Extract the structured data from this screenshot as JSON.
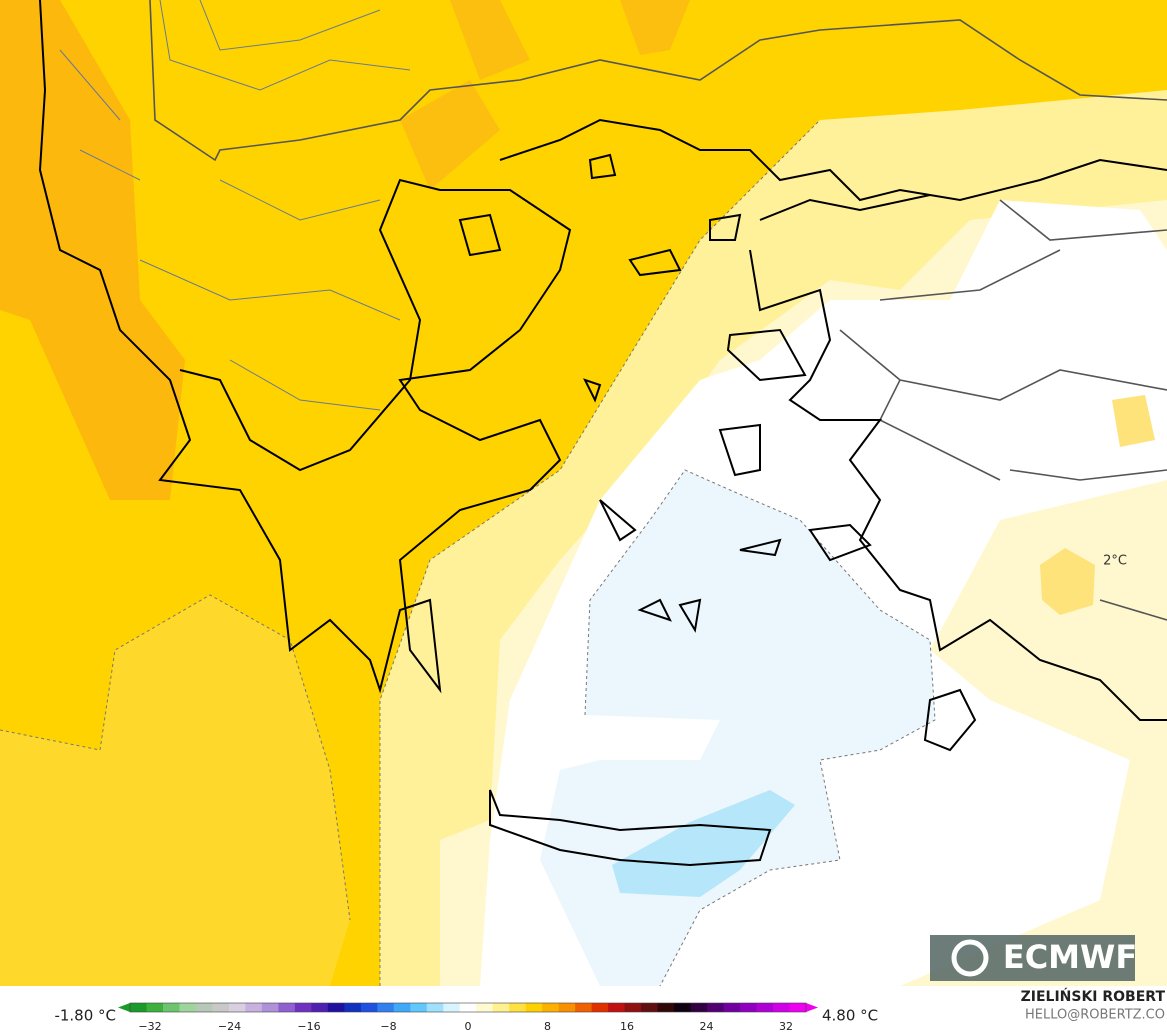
{
  "map": {
    "annotations": [
      "2°C"
    ]
  },
  "logo": "ECMWF",
  "colorbar": {
    "min_label": "-1.80 °C",
    "max_label": "4.80 °C",
    "ticks": [
      "−32",
      "−24",
      "−16",
      "−8",
      "0",
      "8",
      "16",
      "24",
      "32"
    ]
  },
  "credit": {
    "author": "ZIELIŃSKI ROBERT",
    "email": "HELLO@ROBERTZ.CO"
  }
}
